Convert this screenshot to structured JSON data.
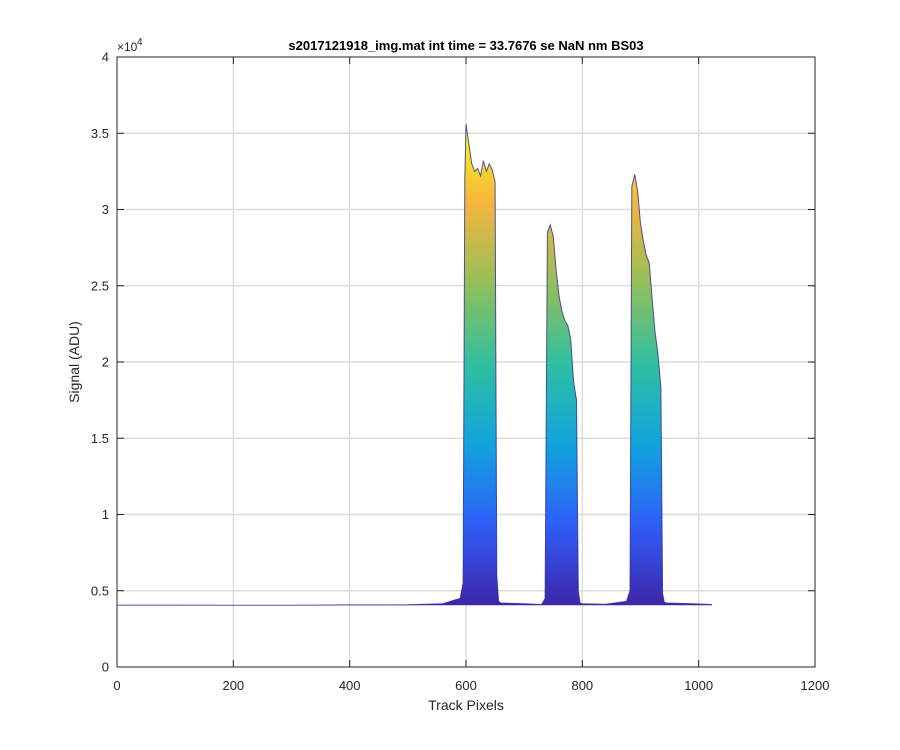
{
  "chart_data": {
    "type": "area",
    "title": "s2017121918_img.mat int time = 33.7676 se  NaN nm BS03",
    "xlabel": "Track Pixels",
    "ylabel": "Signal (ADU)",
    "xlim": [
      0,
      1200
    ],
    "ylim": [
      0,
      40000
    ],
    "xticks": [
      "0",
      "200",
      "400",
      "600",
      "800",
      "1000",
      "1200"
    ],
    "yticks": [
      "0",
      "0.5",
      "1",
      "1.5",
      "2",
      "2.5",
      "3",
      "3.5",
      "4"
    ],
    "y_exponent": "×10",
    "y_exponent_power": "4",
    "grid": true,
    "colormap": [
      "#3e26a8",
      "#2f5ef9",
      "#11a4dd",
      "#2fbfa1",
      "#92bf5a",
      "#f4b53f",
      "#f9fb15"
    ],
    "baseline": 4050,
    "series": [
      {
        "x": [
          0,
          100,
          200,
          300,
          400,
          500,
          560,
          590,
          595,
          598,
          600,
          603,
          606,
          610,
          615,
          620,
          625,
          630,
          635,
          640,
          645,
          650,
          653,
          656,
          660,
          700,
          730,
          736,
          740,
          745,
          750,
          755,
          760,
          765,
          770,
          775,
          780,
          785,
          790,
          793,
          796,
          800,
          840,
          876,
          882,
          885,
          890,
          895,
          900,
          905,
          910,
          915,
          920,
          925,
          930,
          935,
          938,
          941,
          945,
          990,
          1023
        ],
        "y": [
          4050,
          4060,
          4050,
          4050,
          4070,
          4080,
          4150,
          4500,
          5500,
          32000,
          35600,
          34800,
          34000,
          33000,
          32500,
          32700,
          32200,
          33200,
          32500,
          33000,
          32600,
          31800,
          6000,
          4300,
          4200,
          4150,
          4100,
          4500,
          28500,
          29000,
          28200,
          26000,
          24300,
          23300,
          22700,
          22400,
          21500,
          18700,
          17500,
          5000,
          4200,
          4150,
          4120,
          4300,
          5000,
          31500,
          32300,
          31200,
          29100,
          27900,
          27000,
          26500,
          24200,
          22000,
          20500,
          18300,
          4800,
          4250,
          4200,
          4150,
          4100
        ]
      }
    ]
  }
}
